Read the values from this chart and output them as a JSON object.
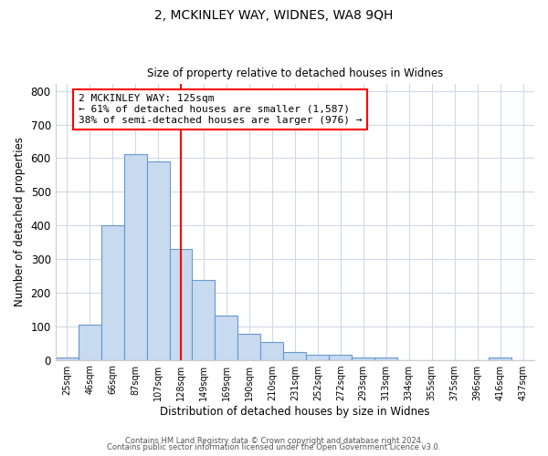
{
  "title1": "2, MCKINLEY WAY, WIDNES, WA8 9QH",
  "title2": "Size of property relative to detached houses in Widnes",
  "xlabel": "Distribution of detached houses by size in Widnes",
  "ylabel": "Number of detached properties",
  "categories": [
    "25sqm",
    "46sqm",
    "66sqm",
    "87sqm",
    "107sqm",
    "128sqm",
    "149sqm",
    "169sqm",
    "190sqm",
    "210sqm",
    "231sqm",
    "252sqm",
    "272sqm",
    "293sqm",
    "313sqm",
    "334sqm",
    "355sqm",
    "375sqm",
    "396sqm",
    "416sqm",
    "437sqm"
  ],
  "values": [
    8,
    106,
    400,
    612,
    590,
    330,
    237,
    133,
    77,
    52,
    22,
    14,
    15,
    8,
    7,
    0,
    0,
    0,
    0,
    8,
    0
  ],
  "bar_color": "#c8daf0",
  "bar_edge_color": "#6699cc",
  "annotation_text": "2 MCKINLEY WAY: 125sqm\n← 61% of detached houses are smaller (1,587)\n38% of semi-detached houses are larger (976) →",
  "annotation_box_color": "white",
  "annotation_box_edge_color": "red",
  "red_line_color": "red",
  "ylim": [
    0,
    820
  ],
  "yticks": [
    0,
    100,
    200,
    300,
    400,
    500,
    600,
    700,
    800
  ],
  "footer1": "Contains HM Land Registry data © Crown copyright and database right 2024.",
  "footer2": "Contains public sector information licensed under the Open Government Licence v3.0.",
  "bg_color": "#ffffff",
  "plot_bg_color": "#ffffff",
  "grid_color": "#d0d8e8"
}
